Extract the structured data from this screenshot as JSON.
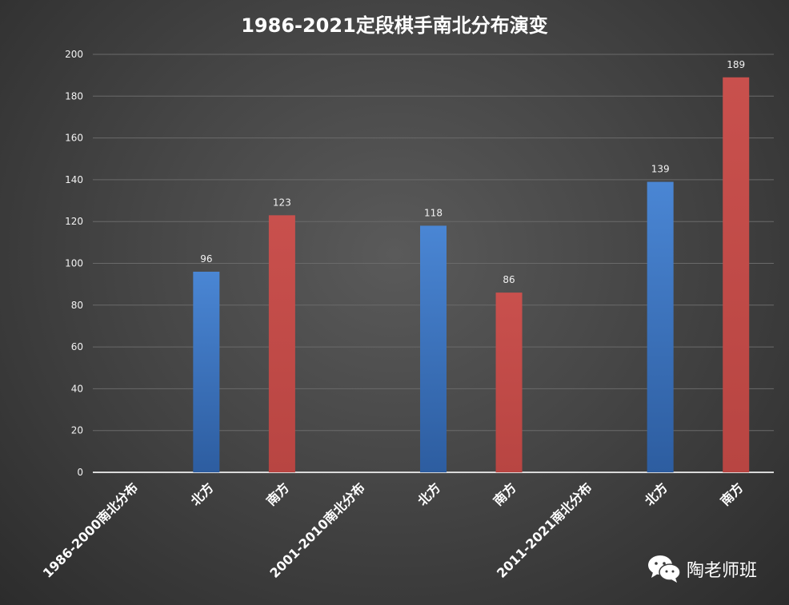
{
  "chart_data": {
    "type": "bar",
    "title": "1986-2021定段棋手南北分布演变",
    "xlabel": "",
    "ylabel": "",
    "ylim": [
      0,
      200
    ],
    "ytick_step": 20,
    "grid": true,
    "legend": "none",
    "categories": [
      "1986-2000南北分布",
      "北方",
      "南方",
      "2001-2010南北分布",
      "北方",
      "南方",
      "2011-2021南北分布",
      "北方",
      "南方"
    ],
    "values": [
      null,
      96,
      123,
      null,
      118,
      86,
      null,
      139,
      189
    ],
    "data_labels": [
      "",
      "96",
      "123",
      "",
      "118",
      "86",
      "",
      "139",
      "189"
    ],
    "colors": {
      "north": "#4a7ec4",
      "south": "#c0504d",
      "grid": "#6a6a6a",
      "axis": "#d9d9d9",
      "text": "#f2f2f2"
    }
  },
  "watermark": {
    "text": "陶老师班",
    "icon": "wechat-icon"
  }
}
